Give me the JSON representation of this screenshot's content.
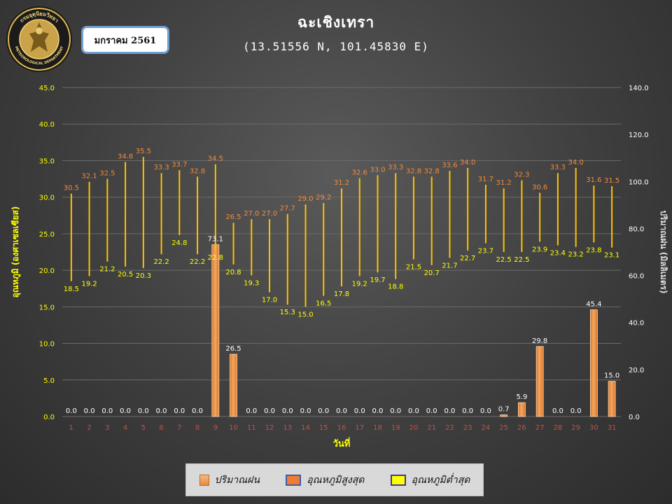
{
  "header": {
    "title": "ฉะเชิงเทรา",
    "subtitle": "(13.51556 N, 101.45830 E)",
    "month_label": "มกราคม 2561"
  },
  "logo": {
    "text_top": "กรมอุตุนิยมวิทยา",
    "text_bottom": "METEOROLOGICAL DEPARTMENT"
  },
  "legend": {
    "rain": "ปริมาณฝน",
    "max": "อุณหภูมิสูงสุด",
    "min": "อุณหภูมิต่ำสุด"
  },
  "chart_data": {
    "type": "bar",
    "xlabel": "วันที่",
    "ylabel_left": "อุณหภูมิ (องศาเซลเซียส)",
    "ylabel_right": "ปริมาณฝน (มิลลิเมตร)",
    "categories": [
      "1",
      "2",
      "3",
      "4",
      "5",
      "6",
      "7",
      "8",
      "9",
      "10",
      "11",
      "12",
      "13",
      "14",
      "15",
      "16",
      "17",
      "18",
      "19",
      "20",
      "21",
      "22",
      "23",
      "24",
      "25",
      "26",
      "27",
      "28",
      "29",
      "30",
      "31"
    ],
    "ylim_left": [
      0,
      45
    ],
    "ylim_right": [
      0,
      140
    ],
    "left_ticks": [
      "0.0",
      "5.0",
      "10.0",
      "15.0",
      "20.0",
      "25.0",
      "30.0",
      "35.0",
      "40.0",
      "45.0"
    ],
    "right_ticks": [
      "0.0",
      "20.0",
      "40.0",
      "60.0",
      "80.0",
      "100.0",
      "120.0",
      "140.0"
    ],
    "grid": true,
    "legend_position": "bottom",
    "series": [
      {
        "name": "ปริมาณฝน",
        "axis": "right",
        "values": [
          0.0,
          0.0,
          0.0,
          0.0,
          0.0,
          0.0,
          0.0,
          0.0,
          73.1,
          26.5,
          0.0,
          0.0,
          0.0,
          0.0,
          0.0,
          0.0,
          0.0,
          0.0,
          0.0,
          0.0,
          0.0,
          0.0,
          0.0,
          0.0,
          0.7,
          5.9,
          29.8,
          0.0,
          0.0,
          45.4,
          15.0
        ],
        "labels": [
          "0.0",
          "0.0",
          "0.0",
          "0.0",
          "0.0",
          "0.0",
          "0.0",
          "0.0",
          "73.1",
          "26.5",
          "0.0",
          "0.0",
          "0.0",
          "0.0",
          "0.0",
          "0.0",
          "0.0",
          "0.0",
          "0.0",
          "0.0",
          "0.0",
          "0.0",
          "0.0",
          "0.0",
          "0.7",
          "5.9",
          "29.8",
          "0.0",
          "0.0",
          "45.4",
          "15.0"
        ]
      },
      {
        "name": "อุณหภูมิสูงสุด",
        "axis": "left",
        "values": [
          30.5,
          32.1,
          32.5,
          34.8,
          35.5,
          33.3,
          33.7,
          32.8,
          34.5,
          26.5,
          27.0,
          27.0,
          27.7,
          29.0,
          29.2,
          31.2,
          32.6,
          33.0,
          33.3,
          32.8,
          32.8,
          33.6,
          34.0,
          31.7,
          31.2,
          32.3,
          30.6,
          33.3,
          34.0,
          31.6,
          31.5
        ],
        "labels": [
          "30.5",
          "32.1",
          "32.5",
          "34.8",
          "35.5",
          "33.3",
          "33.7",
          "32.8",
          "34.5",
          "26.5",
          "27.0",
          "27.0",
          "27.7",
          "29.0",
          "29.2",
          "31.2",
          "32.6",
          "33.0",
          "33.3",
          "32.8",
          "32.8",
          "33.6",
          "34.0",
          "31.7",
          "31.2",
          "32.3",
          "30.6",
          "33.3",
          "34.0",
          "31.6",
          "31.5"
        ]
      },
      {
        "name": "อุณหภูมิต่ำสุด",
        "axis": "left",
        "values": [
          18.5,
          19.2,
          21.2,
          20.5,
          20.3,
          22.2,
          24.8,
          22.2,
          22.8,
          20.8,
          19.3,
          17.0,
          15.3,
          15.0,
          16.5,
          17.8,
          19.2,
          19.7,
          18.8,
          21.5,
          20.7,
          21.7,
          22.7,
          23.7,
          22.5,
          22.5,
          23.9,
          23.4,
          23.2,
          23.8,
          23.1
        ],
        "labels": [
          "18.5",
          "19.2",
          "21.2",
          "20.5",
          "20.3",
          "22.2",
          "24.8",
          "22.2",
          "22.8",
          "20.8",
          "19.3",
          "17.0",
          "15.3",
          "15.0",
          "16.5",
          "17.8",
          "19.2",
          "19.7",
          "18.8",
          "21.5",
          "20.7",
          "21.7",
          "22.7",
          "23.7",
          "22.5",
          "22.5",
          "23.9",
          "23.4",
          "23.2",
          "23.8",
          "23.1"
        ]
      }
    ]
  },
  "colors": {
    "rain_bar": "#f0913f",
    "max_label": "#f08a3c",
    "min_label": "#ffff00",
    "temp_line": "#ffc000",
    "left_axis": "#ffff00",
    "right_axis": "#ffffff",
    "day_label": "#c0504d"
  }
}
